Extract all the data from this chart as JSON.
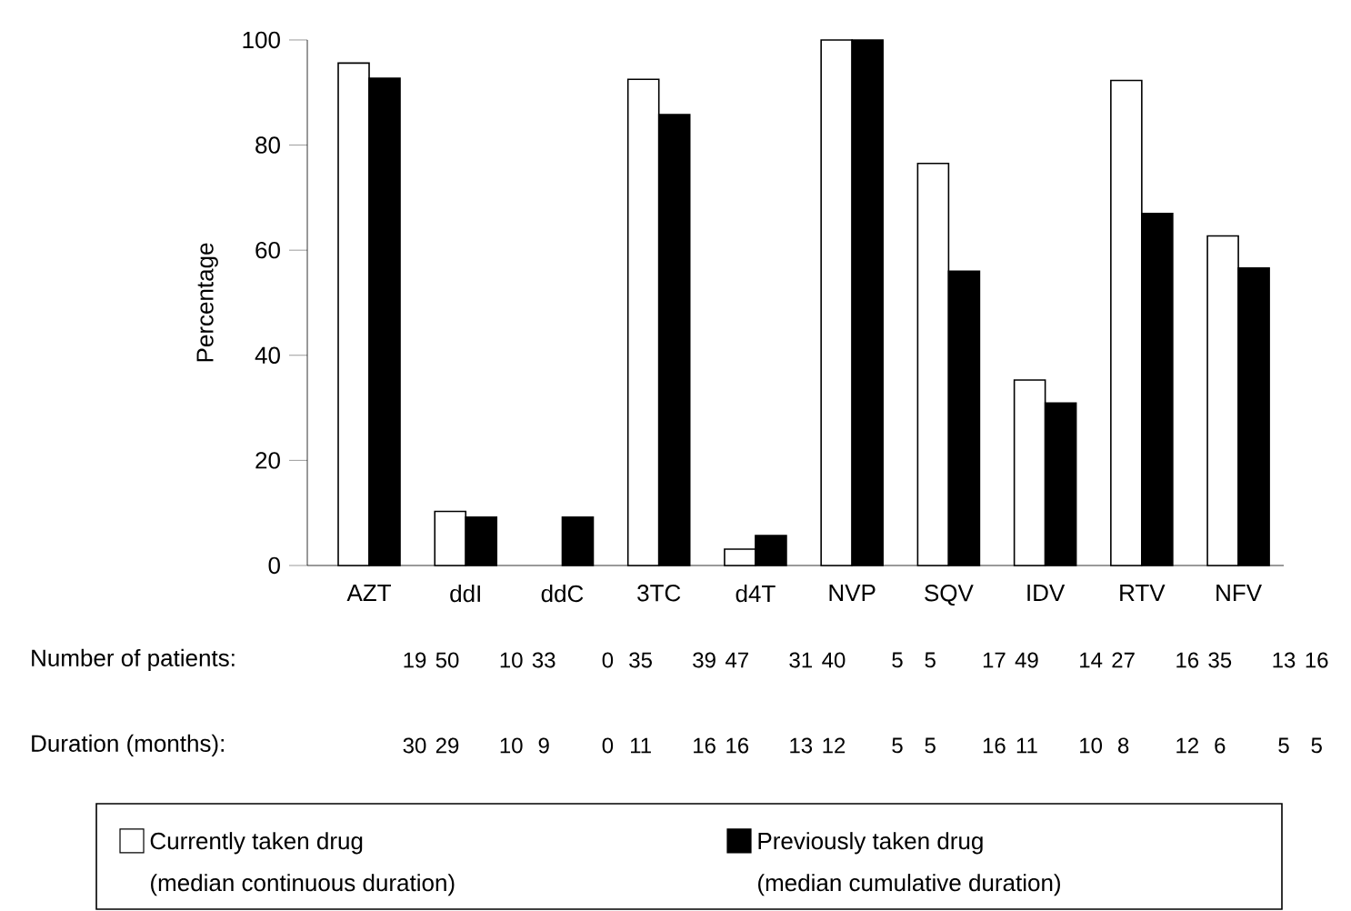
{
  "chart_data": {
    "type": "bar",
    "ylabel": "Percentage",
    "categories": [
      "AZT",
      "ddI",
      "ddC",
      "3TC",
      "d4T",
      "NVP",
      "SQV",
      "IDV",
      "RTV",
      "NFV"
    ],
    "series": [
      {
        "name": "Currently taken drug",
        "color": "#ffffff",
        "values": [
          95.6,
          10.3,
          null,
          92.5,
          3.1,
          100,
          76.5,
          35.3,
          92.3,
          62.7
        ]
      },
      {
        "name": "Previously taken drug",
        "color": "#000000",
        "values": [
          92.7,
          9.2,
          9.2,
          85.8,
          5.7,
          100,
          56.0,
          30.9,
          67.0,
          56.6
        ]
      }
    ],
    "ylim": [
      0,
      100
    ],
    "yticks": [
      0,
      20,
      40,
      60,
      80,
      100
    ],
    "grid": false,
    "legend": "bottom",
    "annotations": [
      "Number of patients:",
      "19",
      "50",
      "10",
      "33",
      "0",
      "35",
      "39",
      "47",
      "31",
      "40",
      "5",
      "5",
      "17",
      "49",
      "14",
      "27",
      "16",
      "35",
      "13",
      "16",
      "Duration (months):",
      "30",
      "29",
      "10",
      "9",
      "0",
      "11",
      "16",
      "16",
      "13",
      "12",
      "5",
      "5",
      "16",
      "11",
      "10",
      "8",
      "12",
      "6",
      "5",
      "5",
      "(median continuous duration)",
      "(median cumulative duration)"
    ]
  }
}
